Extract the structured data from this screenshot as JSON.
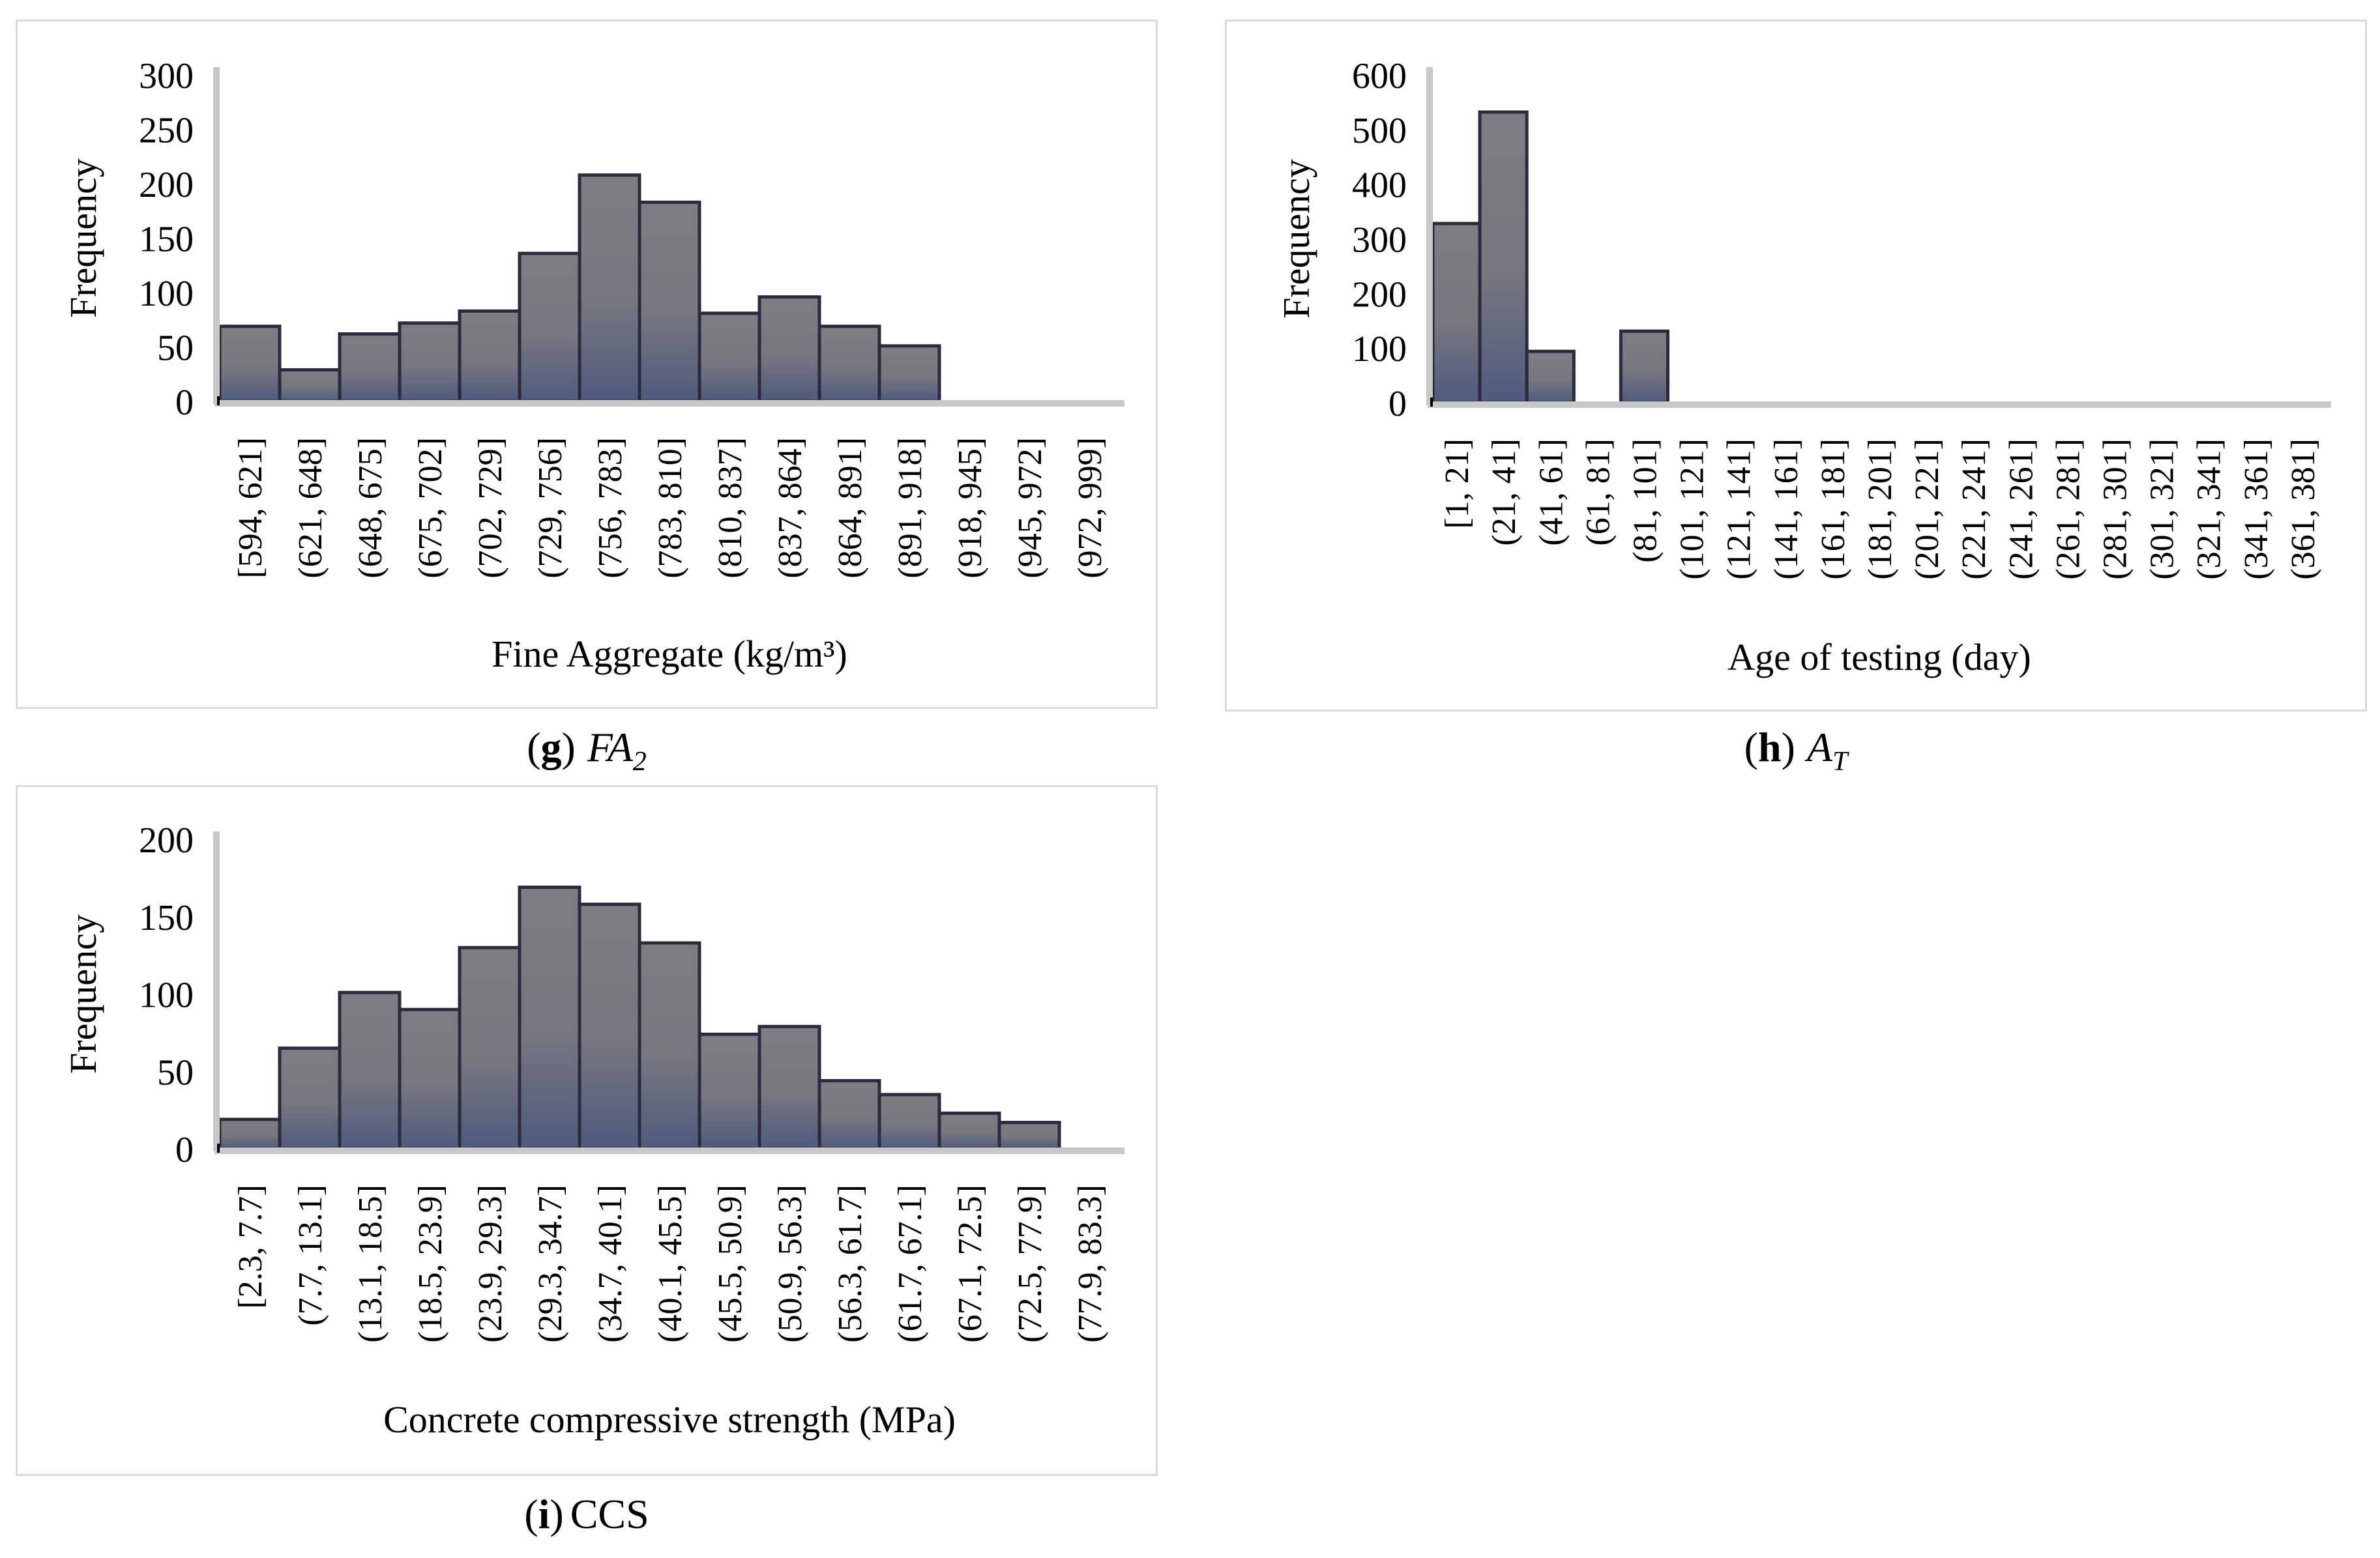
{
  "charts": [
    {
      "caption": {
        "letter": "g",
        "open": "(",
        "close": ")",
        "symbol": "FA",
        "subscript": "2",
        "text": ""
      },
      "chart_data": {
        "type": "bar",
        "xlabel": "Fine Aggregate (kg/m³)",
        "ylabel": "Frequency",
        "ylim": [
          0,
          300
        ],
        "yticks": [
          0,
          50,
          100,
          150,
          200,
          250,
          300
        ],
        "categories": [
          "[594, 621]",
          "(621, 648]",
          "(648, 675]",
          "(675, 702]",
          "(702, 729]",
          "(729, 756]",
          "(756, 783]",
          "(783, 810]",
          "(810, 837]",
          "(837, 864]",
          "(864, 891]",
          "(891, 918]",
          "(918, 945]",
          "(945, 972]",
          "(972, 999]"
        ],
        "values": [
          69,
          29,
          62,
          72,
          83,
          136,
          208,
          183,
          81,
          96,
          69,
          51,
          0,
          0,
          0
        ],
        "colors": {
          "bar": "#7d7d82",
          "bar_edge": "#2b2b3d",
          "axis": "#c8c8c8",
          "accent": "#1f2a5a"
        }
      }
    },
    {
      "caption": {
        "letter": "h",
        "open": "(",
        "close": ")",
        "symbol": "A",
        "subscript": "T",
        "text": ""
      },
      "chart_data": {
        "type": "bar",
        "xlabel": "Age of testing (day)",
        "ylabel": "Frequency",
        "ylim": [
          0,
          600
        ],
        "yticks": [
          0,
          100,
          200,
          300,
          400,
          500,
          600
        ],
        "categories": [
          "[1, 21]",
          "(21, 41]",
          "(41, 61]",
          "(61, 81]",
          "(81, 101]",
          "(101, 121]",
          "(121, 141]",
          "(141, 161]",
          "(161, 181]",
          "(181, 201]",
          "(201, 221]",
          "(221, 241]",
          "(241, 261]",
          "(261, 281]",
          "(281, 301]",
          "(301, 321]",
          "(321, 341]",
          "(341, 361]",
          "(361, 381]"
        ],
        "values": [
          328,
          532,
          94,
          0,
          131,
          0,
          0,
          0,
          0,
          0,
          0,
          0,
          0,
          0,
          0,
          0,
          0,
          0,
          0
        ],
        "colors": {
          "bar": "#7d7d82",
          "bar_edge": "#2b2b3d",
          "axis": "#c8c8c8",
          "accent": "#1f2a5a"
        }
      }
    },
    {
      "caption": {
        "letter": "i",
        "open": "(",
        "close": ")",
        "symbol": "",
        "subscript": "",
        "text": "CCS"
      },
      "chart_data": {
        "type": "bar",
        "xlabel": "Concrete compressive strength (MPa)",
        "ylabel": "Frequency",
        "ylim": [
          0,
          200
        ],
        "yticks": [
          0,
          50,
          100,
          150,
          200
        ],
        "categories": [
          "[2.3, 7.7]",
          "(7.7, 13.1]",
          "(13.1, 18.5]",
          "(18.5, 23.9]",
          "(23.9, 29.3]",
          "(29.3, 34.7]",
          "(34.7, 40.1]",
          "(40.1, 45.5]",
          "(45.5, 50.9]",
          "(50.9, 56.3]",
          "(56.3, 61.7]",
          "(61.7, 67.1]",
          "(67.1, 72.5]",
          "(72.5, 77.9]",
          "(77.9, 83.3]"
        ],
        "values": [
          19,
          65,
          101,
          90,
          130,
          169,
          158,
          133,
          74,
          79,
          44,
          35,
          23,
          17,
          0
        ],
        "colors": {
          "bar": "#7d7d82",
          "bar_edge": "#2b2b3d",
          "axis": "#c8c8c8",
          "accent": "#1f2a5a"
        }
      }
    }
  ]
}
